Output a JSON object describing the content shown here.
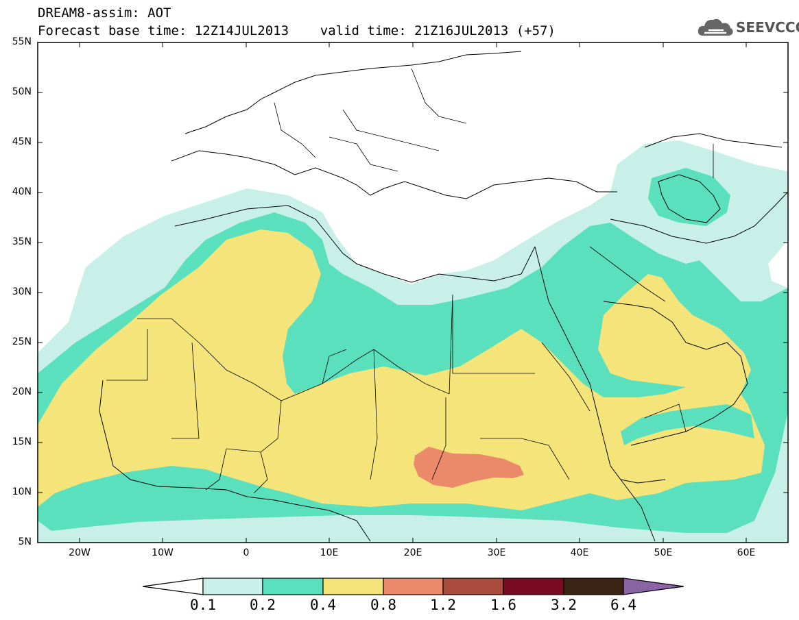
{
  "header": {
    "line1": "DREAM8-assim: AOT",
    "line2": "Forecast base time: 12Z14JUL2013    valid time: 21Z16JUL2013 (+57)"
  },
  "logo": {
    "text": "SEEVCCC",
    "icon": "cloud-icon"
  },
  "map": {
    "lat_labels": [
      "55N",
      "50N",
      "45N",
      "40N",
      "35N",
      "30N",
      "25N",
      "20N",
      "15N",
      "10N",
      "5N"
    ],
    "lon_labels": [
      "20W",
      "10W",
      "0",
      "10E",
      "20E",
      "30E",
      "40E",
      "50E",
      "60E"
    ],
    "extent": {
      "lon": [
        -25,
        65
      ],
      "lat": [
        5,
        55
      ]
    }
  },
  "colorbar": {
    "levels": [
      "0.1",
      "0.2",
      "0.4",
      "0.8",
      "1.2",
      "1.6",
      "3.2",
      "6.4"
    ],
    "colors": [
      "#ffffff",
      "#c8f0e8",
      "#5ae0bc",
      "#f5e47a",
      "#ea8a6a",
      "#a84a3c",
      "#7a0a22",
      "#3c2414",
      "#8a64a4"
    ]
  }
}
